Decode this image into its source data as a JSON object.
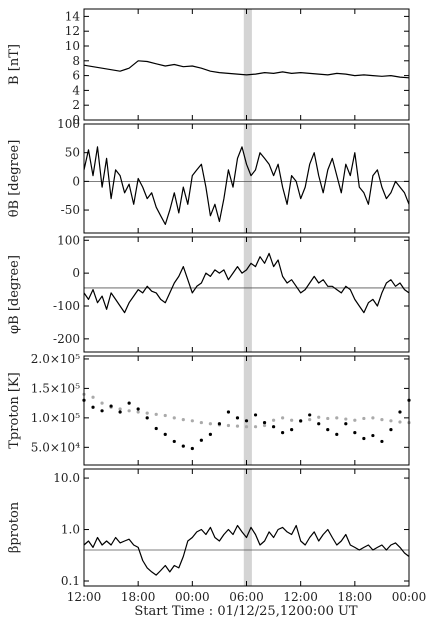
{
  "chart_data": {
    "type": "line",
    "start_time_label": "Start Time : 01/12/25,1200:00 UT",
    "x_tick_labels": [
      "12:00",
      "18:00",
      "00:00",
      "06:00",
      "12:00",
      "18:00",
      "00:00"
    ],
    "x_range_hours": [
      0,
      36
    ],
    "highlight_band_hours": [
      17.7,
      18.6
    ],
    "panels": [
      {
        "id": "b",
        "ylabel": "B [nT]",
        "scale": "linear",
        "ylim": [
          0,
          15
        ],
        "yticks": [
          0,
          2,
          4,
          6,
          8,
          10,
          12,
          14
        ],
        "ytick_labels": [
          "0",
          "2",
          "4",
          "6",
          "8",
          "10",
          "12",
          "14"
        ],
        "reference_line": null,
        "series": [
          {
            "style": "line",
            "color": "#000000",
            "x": [
              0,
              1,
              2,
              3,
              4,
              5,
              6,
              7,
              8,
              9,
              10,
              11,
              12,
              13,
              14,
              15,
              16,
              17,
              18,
              19,
              20,
              21,
              22,
              23,
              24,
              25,
              26,
              27,
              28,
              29,
              30,
              31,
              32,
              33,
              34,
              35,
              36
            ],
            "y": [
              7.4,
              7.2,
              7.0,
              6.8,
              6.6,
              7.0,
              8.0,
              7.9,
              7.6,
              7.3,
              7.5,
              7.2,
              7.3,
              7.0,
              6.6,
              6.4,
              6.3,
              6.2,
              6.1,
              6.2,
              6.4,
              6.3,
              6.5,
              6.3,
              6.4,
              6.3,
              6.2,
              6.1,
              6.3,
              6.2,
              6.0,
              6.1,
              6.0,
              5.9,
              6.0,
              5.8,
              5.7
            ]
          }
        ]
      },
      {
        "id": "theta",
        "ylabel": "θB [degree]",
        "scale": "linear",
        "ylim": [
          -90,
          100
        ],
        "yticks": [
          -50,
          0,
          50,
          100
        ],
        "ytick_labels": [
          "-50",
          "0",
          "50",
          "100"
        ],
        "reference_line": 0,
        "series": [
          {
            "style": "line",
            "color": "#000000",
            "x": [
              0,
              0.5,
              1,
              1.5,
              2,
              2.5,
              3,
              3.5,
              4,
              4.5,
              5,
              5.5,
              6,
              6.5,
              7,
              7.5,
              8,
              8.5,
              9,
              9.5,
              10,
              10.5,
              11,
              11.5,
              12,
              12.5,
              13,
              13.5,
              14,
              14.5,
              15,
              15.5,
              16,
              16.5,
              17,
              17.5,
              18,
              18.5,
              19,
              19.5,
              20,
              20.5,
              21,
              21.5,
              22,
              22.5,
              23,
              23.5,
              24,
              24.5,
              25,
              25.5,
              26,
              26.5,
              27,
              27.5,
              28,
              28.5,
              29,
              29.5,
              30,
              30.5,
              31,
              31.5,
              32,
              32.5,
              33,
              33.5,
              34,
              34.5,
              35,
              35.5,
              36
            ],
            "y": [
              20,
              55,
              10,
              60,
              -10,
              40,
              -30,
              20,
              10,
              -20,
              -5,
              -40,
              5,
              -10,
              -30,
              -20,
              -45,
              -60,
              -75,
              -50,
              -20,
              -55,
              -10,
              -40,
              10,
              20,
              30,
              -10,
              -60,
              -40,
              -70,
              -30,
              20,
              -10,
              40,
              60,
              30,
              10,
              20,
              50,
              40,
              30,
              10,
              30,
              -10,
              -40,
              10,
              0,
              -30,
              -10,
              30,
              50,
              10,
              -20,
              20,
              40,
              10,
              -20,
              30,
              10,
              50,
              -10,
              -20,
              -40,
              10,
              20,
              -10,
              -30,
              -20,
              0,
              -10,
              -20,
              -40
            ]
          }
        ]
      },
      {
        "id": "phi",
        "ylabel": "φB [degree]",
        "scale": "linear",
        "ylim": [
          -240,
          110
        ],
        "yticks": [
          -200,
          -100,
          0,
          100
        ],
        "ytick_labels": [
          "-200",
          "-100",
          "0",
          "100"
        ],
        "reference_line": -45,
        "series": [
          {
            "style": "line",
            "color": "#000000",
            "x": [
              0,
              0.5,
              1,
              1.5,
              2,
              2.5,
              3,
              3.5,
              4,
              4.5,
              5,
              5.5,
              6,
              6.5,
              7,
              7.5,
              8,
              8.5,
              9,
              9.5,
              10,
              10.5,
              11,
              11.5,
              12,
              12.5,
              13,
              13.5,
              14,
              14.5,
              15,
              15.5,
              16,
              16.5,
              17,
              17.5,
              18,
              18.5,
              19,
              19.5,
              20,
              20.5,
              21,
              21.5,
              22,
              22.5,
              23,
              23.5,
              24,
              24.5,
              25,
              25.5,
              26,
              26.5,
              27,
              27.5,
              28,
              28.5,
              29,
              29.5,
              30,
              30.5,
              31,
              31.5,
              32,
              32.5,
              33,
              33.5,
              34,
              34.5,
              35,
              35.5,
              36
            ],
            "y": [
              -60,
              -80,
              -50,
              -90,
              -70,
              -110,
              -60,
              -80,
              -100,
              -120,
              -90,
              -70,
              -50,
              -60,
              -40,
              -55,
              -60,
              -80,
              -90,
              -60,
              -30,
              -10,
              20,
              -20,
              -60,
              -40,
              -30,
              0,
              -10,
              10,
              0,
              10,
              -20,
              0,
              20,
              0,
              10,
              30,
              20,
              50,
              30,
              60,
              20,
              40,
              -10,
              -30,
              -20,
              -40,
              -60,
              -50,
              -30,
              -10,
              -30,
              -20,
              -40,
              -40,
              -50,
              -60,
              -40,
              -50,
              -80,
              -100,
              -120,
              -90,
              -80,
              -100,
              -60,
              -30,
              -20,
              -40,
              -30,
              -50,
              -60
            ]
          }
        ]
      },
      {
        "id": "temp",
        "ylabel": "Tproton [K]",
        "scale": "linear",
        "ylim": [
          20000,
          205000
        ],
        "yticks": [
          50000,
          100000,
          150000,
          200000
        ],
        "ytick_labels": [
          "5.0×10⁴",
          "1.0×10⁵",
          "1.5×10⁵",
          "2.0×10⁵"
        ],
        "reference_line": null,
        "series": [
          {
            "style": "points",
            "color": "#aaaaaa",
            "x": [
              0,
              1,
              2,
              3,
              4,
              5,
              6,
              7,
              8,
              9,
              10,
              11,
              12,
              13,
              14,
              15,
              16,
              17,
              18,
              19,
              20,
              21,
              22,
              23,
              24,
              25,
              26,
              27,
              28,
              29,
              30,
              31,
              32,
              33,
              34,
              35,
              36
            ],
            "y": [
              140000,
              135000,
              125000,
              118000,
              115000,
              112000,
              110000,
              108000,
              106000,
              104000,
              100000,
              97000,
              95000,
              92000,
              90000,
              88000,
              87000,
              86000,
              85000,
              85000,
              87000,
              96000,
              100000,
              96000,
              94000,
              97000,
              101000,
              99000,
              100000,
              98000,
              96000,
              99000,
              100000,
              97000,
              95000,
              93000,
              92000
            ]
          },
          {
            "style": "points",
            "color": "#000000",
            "x": [
              0,
              1,
              2,
              3,
              4,
              5,
              6,
              7,
              8,
              9,
              10,
              11,
              12,
              13,
              14,
              15,
              16,
              17,
              18,
              19,
              20,
              21,
              22,
              23,
              24,
              25,
              26,
              27,
              28,
              29,
              30,
              31,
              32,
              33,
              34,
              35,
              36
            ],
            "y": [
              130000,
              118000,
              112000,
              120000,
              110000,
              125000,
              115000,
              100000,
              82000,
              72000,
              60000,
              52000,
              48000,
              62000,
              72000,
              90000,
              110000,
              100000,
              95000,
              105000,
              92000,
              85000,
              75000,
              80000,
              95000,
              105000,
              90000,
              80000,
              72000,
              90000,
              75000,
              65000,
              70000,
              60000,
              80000,
              110000,
              130000
            ]
          }
        ]
      },
      {
        "id": "beta",
        "ylabel": "βproton",
        "scale": "log",
        "ylim": [
          0.08,
          15
        ],
        "yticks": [
          0.1,
          1.0,
          10.0
        ],
        "ytick_labels": [
          "0.1",
          "1.0",
          "10.0"
        ],
        "reference_line": 0.4,
        "series": [
          {
            "style": "line",
            "color": "#000000",
            "x": [
              0,
              0.5,
              1,
              1.5,
              2,
              2.5,
              3,
              3.5,
              4,
              4.5,
              5,
              5.5,
              6,
              6.5,
              7,
              7.5,
              8,
              8.5,
              9,
              9.5,
              10,
              10.5,
              11,
              11.5,
              12,
              12.5,
              13,
              13.5,
              14,
              14.5,
              15,
              15.5,
              16,
              16.5,
              17,
              17.5,
              18,
              18.5,
              19,
              19.5,
              20,
              20.5,
              21,
              21.5,
              22,
              22.5,
              23,
              23.5,
              24,
              24.5,
              25,
              25.5,
              26,
              26.5,
              27,
              27.5,
              28,
              28.5,
              29,
              29.5,
              30,
              30.5,
              31,
              31.5,
              32,
              32.5,
              33,
              33.5,
              34,
              34.5,
              35,
              35.5,
              36
            ],
            "y": [
              0.5,
              0.6,
              0.45,
              0.7,
              0.5,
              0.6,
              0.5,
              0.7,
              0.55,
              0.6,
              0.65,
              0.5,
              0.45,
              0.25,
              0.18,
              0.15,
              0.13,
              0.16,
              0.2,
              0.15,
              0.2,
              0.18,
              0.3,
              0.6,
              0.7,
              0.9,
              1.0,
              0.8,
              1.1,
              0.7,
              0.6,
              0.8,
              1.0,
              0.8,
              1.2,
              0.9,
              0.7,
              1.1,
              0.8,
              0.5,
              0.6,
              0.9,
              0.7,
              1.0,
              1.1,
              0.9,
              0.8,
              1.2,
              0.6,
              0.5,
              0.7,
              0.9,
              0.6,
              0.8,
              1.0,
              0.7,
              0.5,
              0.6,
              0.8,
              0.5,
              0.45,
              0.4,
              0.45,
              0.5,
              0.4,
              0.45,
              0.5,
              0.4,
              0.5,
              0.55,
              0.45,
              0.35,
              0.3
            ]
          }
        ]
      }
    ]
  }
}
